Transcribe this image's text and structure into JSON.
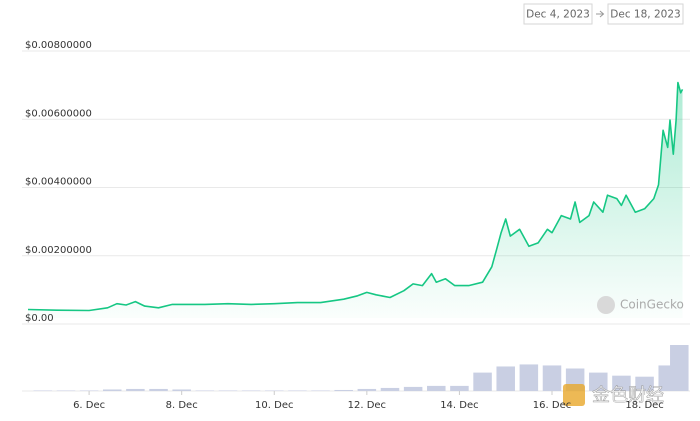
{
  "chart_data": {
    "type": "line",
    "date_from": "Dec 4, 2023",
    "date_to": "Dec 18, 2023",
    "watermark": "CoinGecko",
    "overlay_watermark": "金色财经",
    "color": "#16c784",
    "x": [
      4.68,
      5.3,
      6.0,
      6.4,
      6.6,
      6.8,
      7.0,
      7.2,
      7.5,
      7.8,
      8.5,
      9.0,
      9.5,
      10.0,
      10.5,
      11.0,
      11.5,
      11.8,
      12.0,
      12.2,
      12.5,
      12.8,
      13.0,
      13.2,
      13.4,
      13.5,
      13.7,
      13.9,
      14.2,
      14.5,
      14.7,
      14.8,
      14.9,
      15.0,
      15.1,
      15.3,
      15.5,
      15.7,
      15.9,
      16.0,
      16.2,
      16.4,
      16.5,
      16.6,
      16.8,
      16.9,
      17.1,
      17.2,
      17.4,
      17.5,
      17.6,
      17.8,
      18.0,
      18.2,
      18.3,
      18.4,
      18.5,
      18.55,
      18.62,
      18.68,
      18.72,
      18.78,
      18.82
    ],
    "values": [
      0.00025,
      0.00023,
      0.00022,
      0.0003,
      0.00042,
      0.00038,
      0.00048,
      0.00035,
      0.0003,
      0.0004,
      0.0004,
      0.00042,
      0.0004,
      0.00042,
      0.00045,
      0.00045,
      0.00055,
      0.00065,
      0.00075,
      0.00068,
      0.0006,
      0.0008,
      0.001,
      0.00095,
      0.0013,
      0.00105,
      0.00115,
      0.00095,
      0.00095,
      0.00105,
      0.0015,
      0.002,
      0.0025,
      0.0029,
      0.0024,
      0.0026,
      0.0021,
      0.0022,
      0.0026,
      0.0025,
      0.003,
      0.0029,
      0.0034,
      0.0028,
      0.003,
      0.0034,
      0.0031,
      0.0036,
      0.0035,
      0.0033,
      0.0036,
      0.0031,
      0.0032,
      0.0035,
      0.0039,
      0.0055,
      0.005,
      0.0058,
      0.0048,
      0.0058,
      0.0069,
      0.0066,
      0.0067
    ],
    "xlim": [
      4.68,
      18.83
    ],
    "xticks": [
      {
        "value": 6,
        "label": "6. Dec"
      },
      {
        "value": 8,
        "label": "8. Dec"
      },
      {
        "value": 10,
        "label": "10. Dec"
      },
      {
        "value": 12,
        "label": "12. Dec"
      },
      {
        "value": 14,
        "label": "14. Dec"
      },
      {
        "value": 16,
        "label": "16. Dec"
      },
      {
        "value": 18,
        "label": "18. Dec"
      }
    ],
    "ylim": [
      0,
      0.008
    ],
    "yticks": [
      {
        "value": 0,
        "label": "$0.00"
      },
      {
        "value": 0.002,
        "label": "$0.00200000"
      },
      {
        "value": 0.004,
        "label": "$0.00400000"
      },
      {
        "value": 0.006,
        "label": "$0.00600000"
      },
      {
        "value": 0.008,
        "label": "$0.00800000"
      }
    ],
    "grid": true,
    "volume": {
      "color": "#c9cfe3",
      "x": [
        5,
        5.5,
        6,
        6.5,
        7,
        7.5,
        8,
        8.5,
        9,
        9.5,
        10,
        10.5,
        11,
        11.5,
        12,
        12.5,
        13,
        13.5,
        14,
        14.5,
        15,
        15.5,
        16,
        16.5,
        17,
        17.5,
        18,
        18.5,
        18.75
      ],
      "values": [
        0.5,
        0.5,
        0.5,
        1.5,
        2,
        2,
        1.5,
        0.5,
        0.5,
        0.5,
        0.5,
        0.5,
        0.5,
        1,
        2,
        3,
        4,
        5,
        5,
        18,
        24,
        26,
        25,
        22,
        18,
        15,
        14,
        25,
        45
      ]
    }
  }
}
